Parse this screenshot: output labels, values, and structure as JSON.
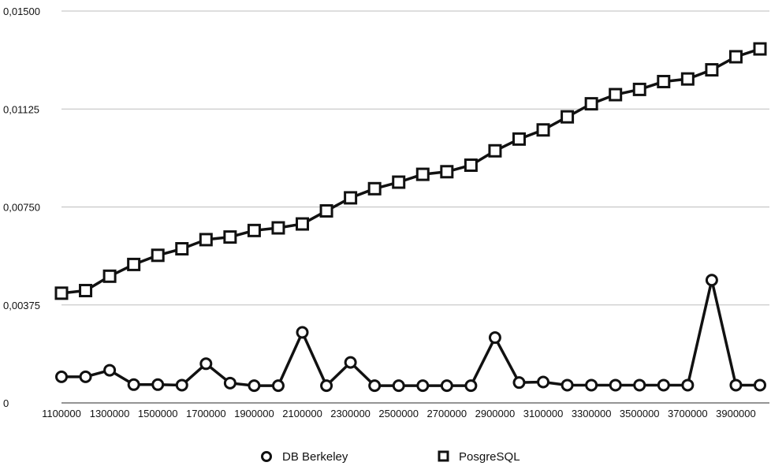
{
  "chart_data": {
    "type": "line",
    "x": [
      1100000,
      1200000,
      1300000,
      1400000,
      1500000,
      1600000,
      1700000,
      1800000,
      1900000,
      2000000,
      2100000,
      2200000,
      2300000,
      2400000,
      2500000,
      2600000,
      2700000,
      2800000,
      2900000,
      3000000,
      3100000,
      3200000,
      3300000,
      3400000,
      3500000,
      3600000,
      3700000,
      3800000,
      3900000,
      4000000
    ],
    "x_tick_labels": [
      "1100000",
      "1300000",
      "1500000",
      "1700000",
      "1900000",
      "2100000",
      "2300000",
      "2500000",
      "2700000",
      "2900000",
      "3100000",
      "3300000",
      "3500000",
      "3700000",
      "3900000"
    ],
    "y_tick_labels": [
      "0",
      "0,00375",
      "0,00750",
      "0,01125",
      "0,01500"
    ],
    "y_ticks": [
      0,
      0.00375,
      0.0075,
      0.01125,
      0.015
    ],
    "ylim": [
      0,
      0.015
    ],
    "xlim": [
      1100000,
      4000000
    ],
    "grid": true,
    "legend_position": "bottom",
    "series": [
      {
        "name": "DB Berkeley",
        "marker": "circle",
        "values": [
          0.001,
          0.001,
          0.00125,
          0.0007,
          0.0007,
          0.00068,
          0.0015,
          0.00076,
          0.00066,
          0.00066,
          0.0027,
          0.00066,
          0.00155,
          0.00066,
          0.00066,
          0.00066,
          0.00066,
          0.00066,
          0.0025,
          0.00078,
          0.0008,
          0.00068,
          0.00068,
          0.00068,
          0.00068,
          0.00068,
          0.00068,
          0.0047,
          0.00068,
          0.00068
        ]
      },
      {
        "name": "PosgreSQL",
        "marker": "square",
        "values": [
          0.0042,
          0.0043,
          0.00485,
          0.0053,
          0.00565,
          0.0059,
          0.00625,
          0.00635,
          0.0066,
          0.0067,
          0.00685,
          0.00735,
          0.00785,
          0.0082,
          0.00845,
          0.00875,
          0.00885,
          0.0091,
          0.00965,
          0.0101,
          0.01045,
          0.01095,
          0.01145,
          0.0118,
          0.012,
          0.0123,
          0.0124,
          0.01275,
          0.01325,
          0.01355
        ]
      }
    ]
  }
}
